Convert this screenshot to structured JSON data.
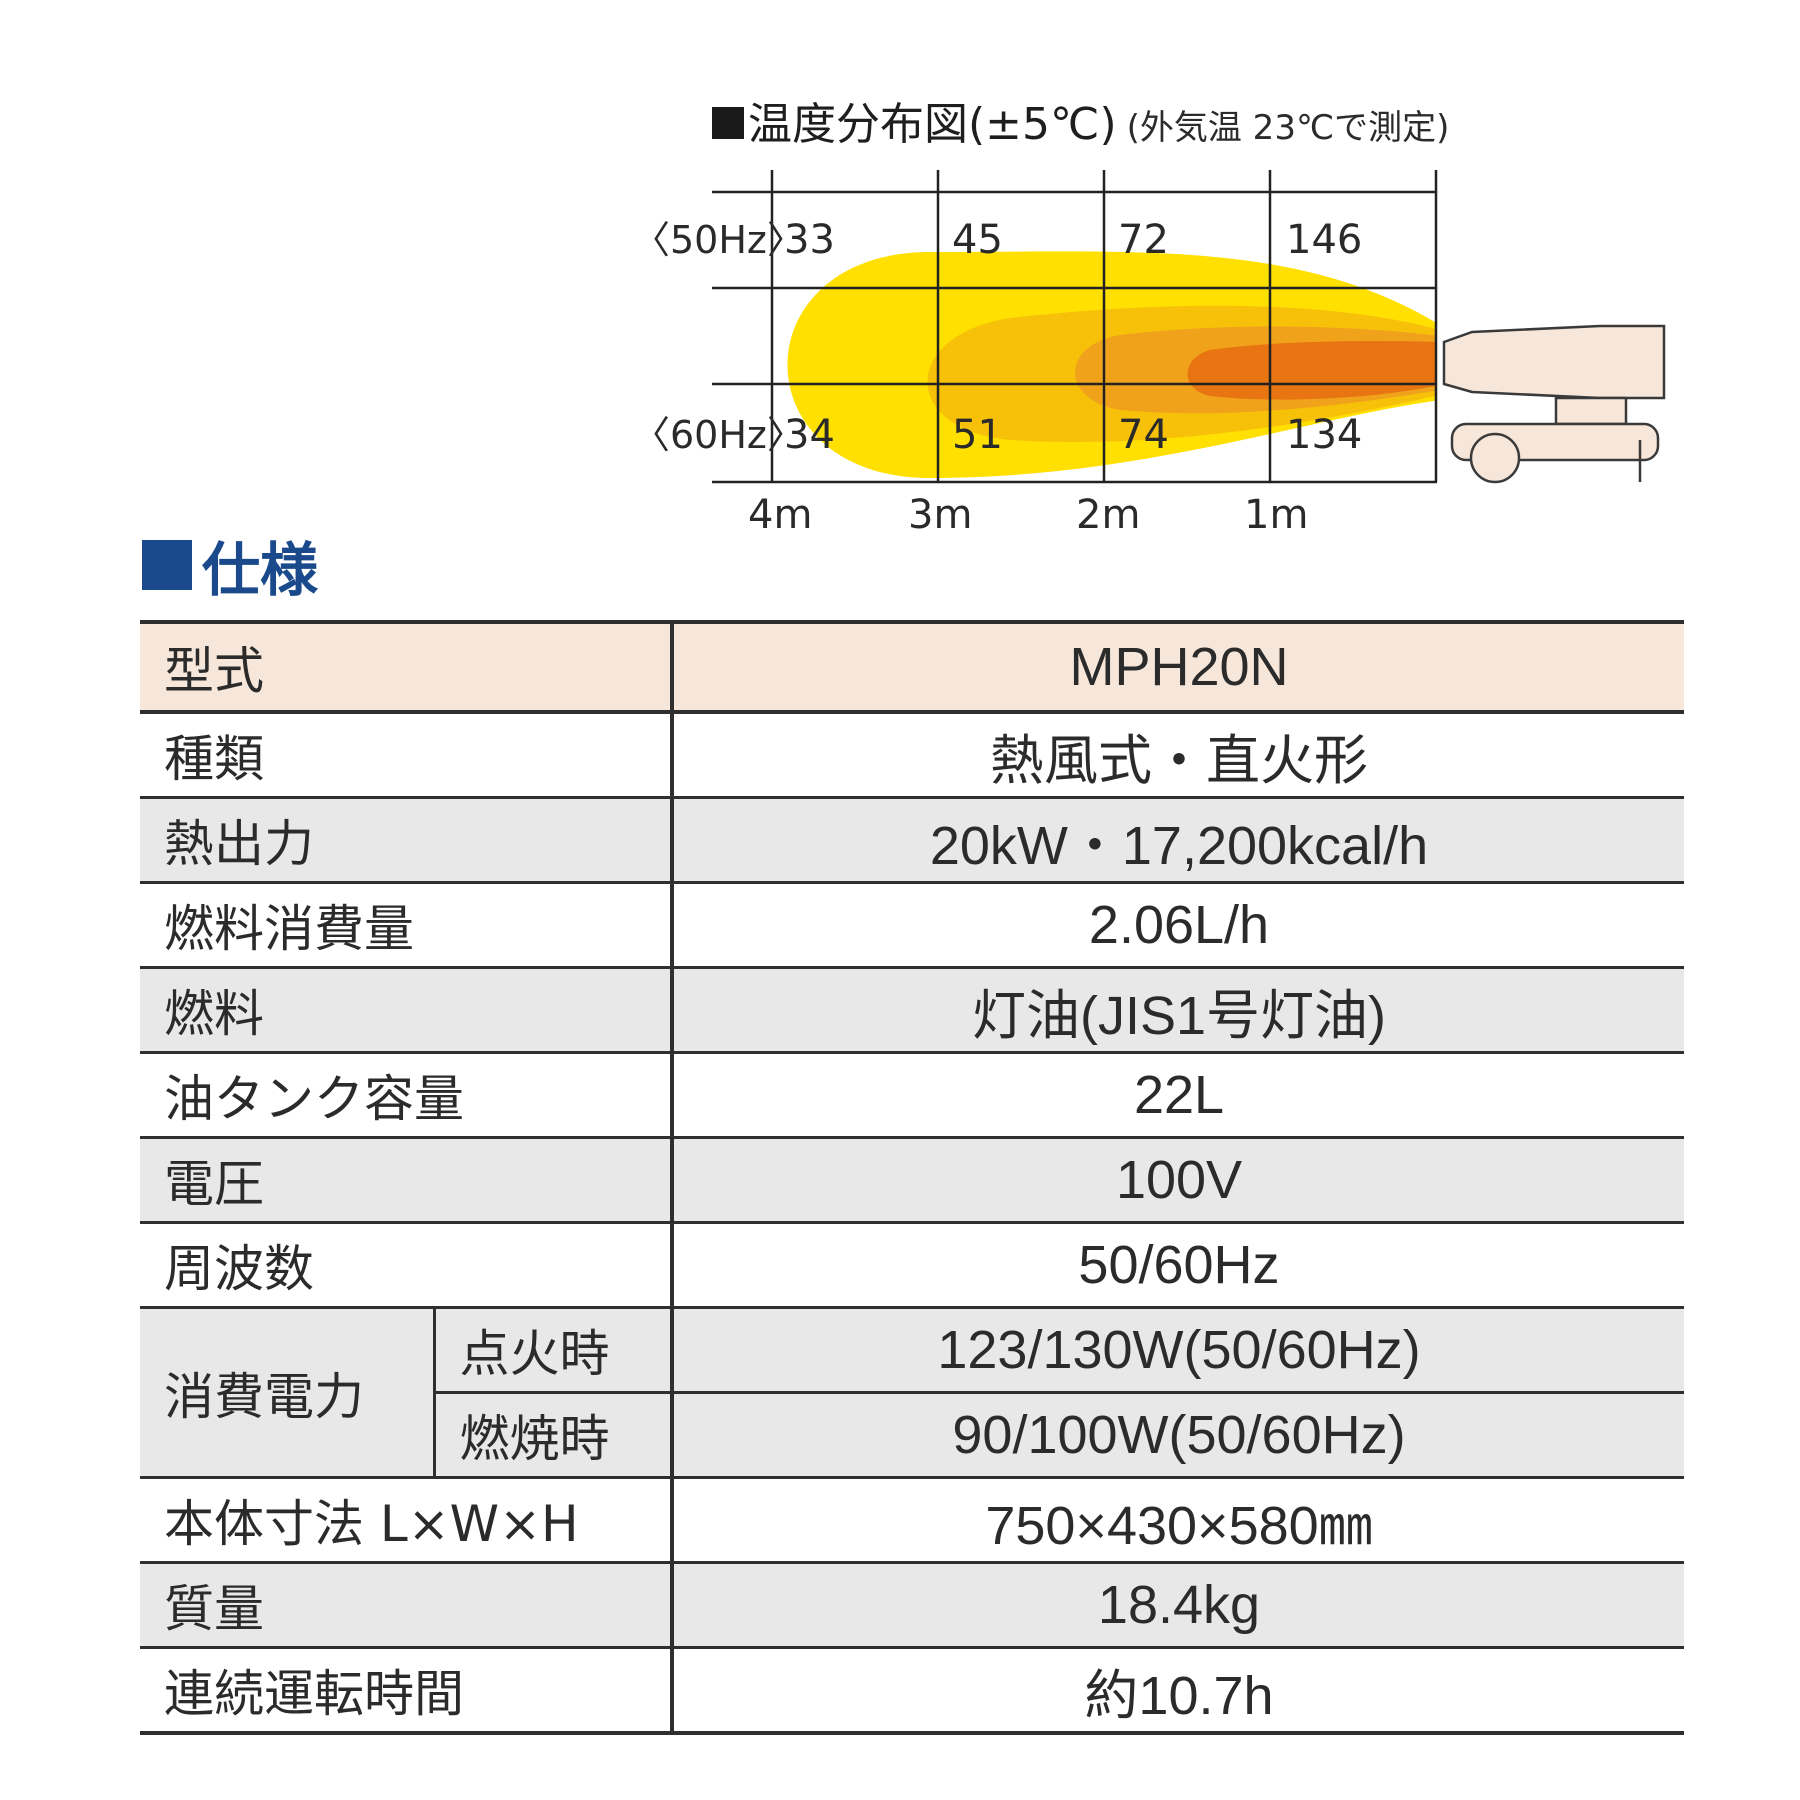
{
  "diagram": {
    "title": "温度分布図(±5℃)",
    "subtitle": "(外気温 23℃で測定)",
    "row_labels": [
      "〈50Hz〉",
      "〈60Hz〉"
    ],
    "values_50hz": [
      "33",
      "45",
      "72",
      "146"
    ],
    "values_60hz": [
      "34",
      "51",
      "74",
      "134"
    ],
    "distances": [
      "4m",
      "3m",
      "2m",
      "1m"
    ],
    "colors": {
      "outer": "#ffe000",
      "mid": "#f7c10a",
      "inner": "#f0a21b",
      "core": "#e87512",
      "heater": "#f7e7da"
    }
  },
  "spec": {
    "heading": "仕様",
    "model_label": "型式",
    "model_value": "MPH20N",
    "rows": [
      {
        "label": "種類",
        "value": "熱風式・直火形"
      },
      {
        "label": "熱出力",
        "value": "20kW・17,200kcal/h"
      },
      {
        "label": "燃料消費量",
        "value": "2.06L/h"
      },
      {
        "label": "燃料",
        "value": "灯油(JIS1号灯油)"
      },
      {
        "label": "油タンク容量",
        "value": "22L"
      },
      {
        "label": "電圧",
        "value": "100V"
      },
      {
        "label": "周波数",
        "value": "50/60Hz"
      }
    ],
    "power": {
      "label": "消費電力",
      "ignition_label": "点火時",
      "ignition_value": "123/130W(50/60Hz)",
      "burning_label": "燃焼時",
      "burning_value": "90/100W(50/60Hz)"
    },
    "rows_after": [
      {
        "label": "本体寸法 L×W×H",
        "value": "750×430×580㎜"
      },
      {
        "label": "質量",
        "value": "18.4kg"
      },
      {
        "label": "連続運転時間",
        "value": "約10.7h"
      }
    ]
  }
}
